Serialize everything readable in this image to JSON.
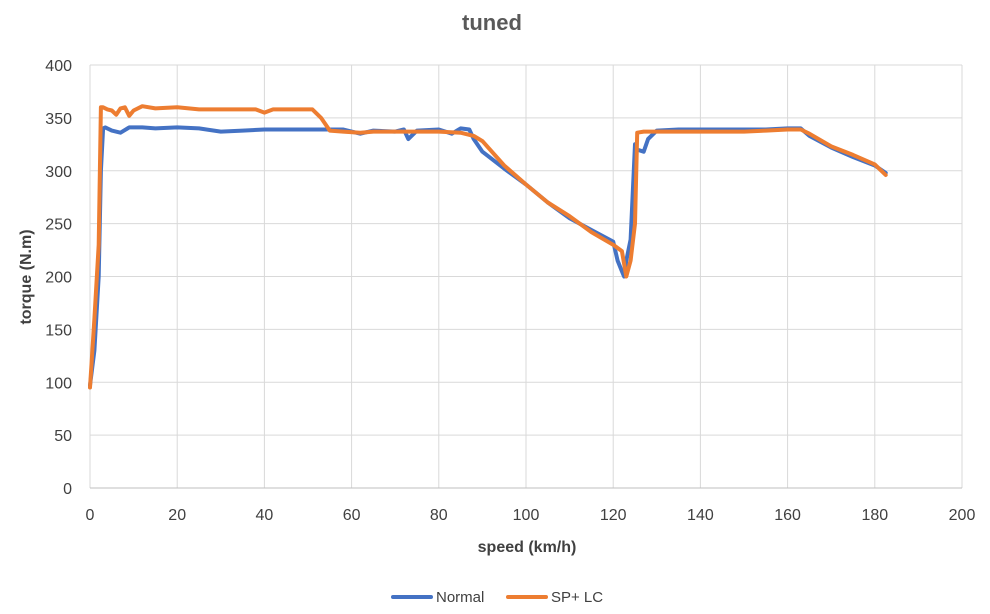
{
  "chart_data": {
    "type": "line",
    "title": "tuned",
    "xlabel": "speed (km/h)",
    "ylabel": "torque (N.m)",
    "xlim": [
      0,
      200
    ],
    "ylim": [
      0,
      400
    ],
    "xticks": [
      "0",
      "20",
      "40",
      "60",
      "80",
      "100",
      "120",
      "140",
      "160",
      "180",
      "200"
    ],
    "yticks": [
      "0",
      "50",
      "100",
      "150",
      "200",
      "250",
      "300",
      "350",
      "400"
    ],
    "grid": "horizontal",
    "legend_position": "bottom",
    "series": [
      {
        "name": "Normal",
        "color": "#4472C4",
        "x": [
          0,
          1,
          2,
          2.5,
          3,
          3.5,
          5,
          7,
          9,
          12,
          15,
          20,
          25,
          30,
          35,
          40,
          45,
          50,
          55,
          58,
          62,
          65,
          70,
          72,
          73,
          75,
          80,
          83,
          85,
          87,
          88,
          90,
          95,
          100,
          105,
          110,
          115,
          120,
          121,
          122,
          122.5,
          123,
          124,
          125,
          125.5,
          127,
          128,
          130,
          135,
          140,
          145,
          150,
          155,
          160,
          162,
          163,
          165,
          170,
          175,
          180,
          182.5
        ],
        "values": [
          97,
          130,
          200,
          300,
          340,
          341,
          338,
          336,
          341,
          341,
          340,
          341,
          340,
          337,
          338,
          339,
          339,
          339,
          339,
          339,
          335,
          338,
          337,
          339,
          330,
          338,
          339,
          335,
          340,
          339,
          330,
          318,
          302,
          287,
          270,
          255,
          244,
          233,
          215,
          205,
          200,
          215,
          235,
          325,
          320,
          318,
          330,
          338,
          339,
          339,
          339,
          339,
          339,
          340,
          340,
          340,
          333,
          322,
          313,
          305,
          298
        ]
      },
      {
        "name": "SP+ LC",
        "color": "#ED7D31",
        "x": [
          0,
          1,
          2,
          2.5,
          3,
          4,
          5,
          6,
          7,
          8,
          9,
          10,
          12,
          15,
          20,
          25,
          30,
          35,
          38,
          40,
          42,
          45,
          50,
          51,
          53,
          55,
          58,
          62,
          65,
          70,
          75,
          80,
          85,
          88,
          90,
          95,
          100,
          105,
          110,
          115,
          120,
          122,
          123,
          124,
          125,
          125.5,
          127,
          130,
          135,
          140,
          145,
          150,
          155,
          160,
          163,
          165,
          170,
          175,
          180,
          182.5
        ],
        "values": [
          95,
          160,
          230,
          360,
          360,
          358,
          357,
          353,
          359,
          360,
          352,
          357,
          361,
          359,
          360,
          358,
          358,
          358,
          358,
          355,
          358,
          358,
          358,
          358,
          350,
          338,
          337,
          336,
          337,
          337,
          337,
          337,
          336,
          333,
          328,
          305,
          287,
          270,
          257,
          242,
          230,
          224,
          200,
          215,
          250,
          336,
          337,
          337,
          337,
          337,
          337,
          337,
          338,
          339,
          339,
          335,
          323,
          315,
          306,
          296
        ]
      }
    ]
  }
}
